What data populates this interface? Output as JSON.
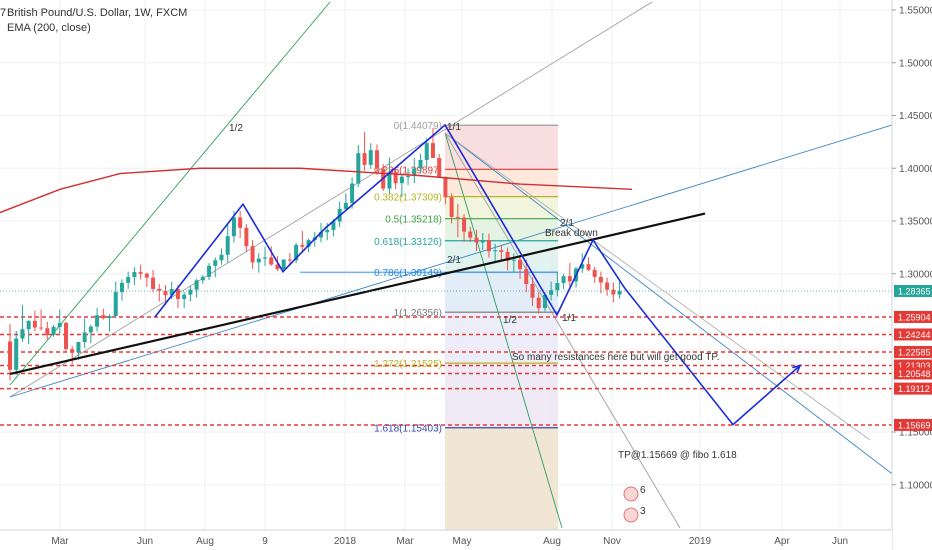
{
  "chart_data": {
    "type": "line",
    "title": "British Pound/U.S. Dollar, 1W, FXCM",
    "title_prefix": "7",
    "indicator": "EMA (200, close)",
    "x_labels": [
      "Mar",
      "Jun",
      "Aug",
      "9",
      "2018",
      "Mar",
      "May",
      "Aug",
      "Nov",
      "2019",
      "Apr",
      "Jun"
    ],
    "y_ticks": [
      "1.55000",
      "1.50000",
      "1.45000",
      "1.40000",
      "1.35000",
      "1.30000",
      "1.15000",
      "1.10000"
    ],
    "ylim": [
      1.08,
      1.56
    ],
    "current_price": "1.28365",
    "resistance_levels": [
      "1.25904",
      "1.24244",
      "1.22585",
      "1.21303",
      "1.20548",
      "1.19112",
      "1.15669"
    ],
    "fib_levels": [
      {
        "label": "0(1.44079)",
        "value": 1.44079,
        "color": "#9e9e9e"
      },
      {
        "label": "0.236(1.39897)",
        "value": 1.39897,
        "color": "#e53935"
      },
      {
        "label": "0.382(1.37309)",
        "value": 1.37309,
        "color": "#b5b51f"
      },
      {
        "label": "0.5(1.35218)",
        "value": 1.35218,
        "color": "#43a047"
      },
      {
        "label": "0.618(1.33126)",
        "value": 1.33126,
        "color": "#26a69a"
      },
      {
        "label": "0.786(1.30149)",
        "value": 1.30149,
        "color": "#1e88e5"
      },
      {
        "label": "1(1.26356)",
        "value": 1.26356,
        "color": "#757575"
      },
      {
        "label": "1.272(1.21525)",
        "value": 1.21525,
        "color": "#b5b51f"
      },
      {
        "label": "1.618(1.15403)",
        "value": 1.15403,
        "color": "#3949ab"
      }
    ],
    "annotations": {
      "breakdown": "Break down",
      "resistances": "So many resistances here but will get good TP.",
      "tp": "TP@1.15669 @ fibo 1.618",
      "fan_half_left": "1/2",
      "fan_half_mid": "1/2",
      "fan_one_top": "1/1",
      "fan_one_bottom": "1/1",
      "fan_two_top": "2/1",
      "fan_two_mid": "2/1",
      "event_count_top": "6",
      "event_count_bottom": "3"
    },
    "ohlc": [
      [
        1.2358,
        1.2526,
        1.1987,
        1.2089
      ],
      [
        1.2089,
        1.2458,
        1.2042,
        1.2386
      ],
      [
        1.2386,
        1.2706,
        1.2354,
        1.2474
      ],
      [
        1.2474,
        1.2558,
        1.2332,
        1.2554
      ],
      [
        1.2554,
        1.265,
        1.2455,
        1.249
      ],
      [
        1.249,
        1.2661,
        1.2461,
        1.2484
      ],
      [
        1.2484,
        1.2546,
        1.2378,
        1.2419
      ],
      [
        1.2419,
        1.2513,
        1.2403,
        1.2496
      ],
      [
        1.2496,
        1.2662,
        1.2432,
        1.2533
      ],
      [
        1.2533,
        1.2548,
        1.2266,
        1.2286
      ],
      [
        1.2286,
        1.2316,
        1.2143,
        1.2257
      ],
      [
        1.2257,
        1.2356,
        1.2185,
        1.2353
      ],
      [
        1.2353,
        1.2577,
        1.2295,
        1.2444
      ],
      [
        1.2444,
        1.2516,
        1.2342,
        1.2499
      ],
      [
        1.2499,
        1.2676,
        1.2452,
        1.2607
      ],
      [
        1.2607,
        1.2669,
        1.2565,
        1.2579
      ],
      [
        1.2579,
        1.2614,
        1.2452,
        1.2599
      ],
      [
        1.2599,
        1.2925,
        1.2585,
        1.2826
      ],
      [
        1.2826,
        1.2947,
        1.2745,
        1.2914
      ],
      [
        1.2914,
        1.302,
        1.2857,
        1.2969
      ],
      [
        1.2969,
        1.3061,
        1.2892,
        1.3016
      ],
      [
        1.3016,
        1.3087,
        1.2947,
        1.3
      ],
      [
        1.3,
        1.3012,
        1.2875,
        1.2964
      ],
      [
        1.2964,
        1.3037,
        1.2823,
        1.2856
      ],
      [
        1.2856,
        1.2902,
        1.2737,
        1.2838
      ],
      [
        1.2838,
        1.2892,
        1.2705,
        1.2797
      ],
      [
        1.2797,
        1.2924,
        1.2758,
        1.2856
      ],
      [
        1.2856,
        1.2889,
        1.2674,
        1.2761
      ],
      [
        1.2761,
        1.2827,
        1.2673,
        1.2802
      ],
      [
        1.2802,
        1.2886,
        1.2739,
        1.2849
      ],
      [
        1.2849,
        1.2951,
        1.2777,
        1.2938
      ],
      [
        1.2938,
        1.2989,
        1.2904,
        1.297
      ],
      [
        1.297,
        1.3101,
        1.2941,
        1.3075
      ],
      [
        1.3075,
        1.3155,
        1.2966,
        1.3128
      ],
      [
        1.3128,
        1.3241,
        1.3085,
        1.318
      ],
      [
        1.318,
        1.3469,
        1.3106,
        1.3356
      ],
      [
        1.3356,
        1.3593,
        1.3296,
        1.3534
      ],
      [
        1.3534,
        1.3597,
        1.3338,
        1.3435
      ],
      [
        1.3435,
        1.3471,
        1.3206,
        1.3262
      ],
      [
        1.3262,
        1.3322,
        1.3046,
        1.3108
      ],
      [
        1.3108,
        1.3195,
        1.3011,
        1.3144
      ],
      [
        1.3144,
        1.3256,
        1.3074,
        1.3155
      ],
      [
        1.3155,
        1.3262,
        1.3075,
        1.3087
      ],
      [
        1.3087,
        1.3167,
        1.3028,
        1.3044
      ],
      [
        1.3044,
        1.3136,
        1.3027,
        1.3135
      ],
      [
        1.3135,
        1.3197,
        1.3075,
        1.3127
      ],
      [
        1.3127,
        1.3292,
        1.3099,
        1.3273
      ],
      [
        1.3273,
        1.3405,
        1.3198,
        1.3256
      ],
      [
        1.3256,
        1.3333,
        1.3205,
        1.3319
      ],
      [
        1.3319,
        1.3397,
        1.3256,
        1.3345
      ],
      [
        1.3345,
        1.3484,
        1.3297,
        1.3393
      ],
      [
        1.3393,
        1.3481,
        1.3318,
        1.3416
      ],
      [
        1.3416,
        1.3518,
        1.3355,
        1.3495
      ],
      [
        1.3495,
        1.3684,
        1.3442,
        1.3615
      ],
      [
        1.3615,
        1.3762,
        1.3597,
        1.3672
      ],
      [
        1.3672,
        1.3914,
        1.3617,
        1.3855
      ],
      [
        1.3855,
        1.4219,
        1.3822,
        1.4143
      ],
      [
        1.4143,
        1.4344,
        1.3975,
        1.4032
      ],
      [
        1.4032,
        1.4237,
        1.3991,
        1.4171
      ],
      [
        1.4171,
        1.4226,
        1.3935,
        1.3995
      ],
      [
        1.3995,
        1.404,
        1.3785,
        1.3807
      ],
      [
        1.3807,
        1.4102,
        1.3758,
        1.3962
      ],
      [
        1.3962,
        1.4001,
        1.3803,
        1.3858
      ],
      [
        1.3858,
        1.3949,
        1.3727,
        1.392
      ],
      [
        1.392,
        1.3998,
        1.384,
        1.3926
      ],
      [
        1.3926,
        1.4096,
        1.3859,
        1.3998
      ],
      [
        1.3998,
        1.4138,
        1.395,
        1.4079
      ],
      [
        1.4079,
        1.4281,
        1.4012,
        1.4238
      ],
      [
        1.4238,
        1.4382,
        1.4129,
        1.4097
      ],
      [
        1.4097,
        1.4136,
        1.3951,
        1.3918
      ],
      [
        1.3918,
        1.3911,
        1.3657,
        1.3725
      ],
      [
        1.3725,
        1.3762,
        1.3476,
        1.3539
      ],
      [
        1.3539,
        1.3662,
        1.3346,
        1.3532
      ],
      [
        1.3532,
        1.3567,
        1.3302,
        1.34
      ],
      [
        1.34,
        1.3446,
        1.3301,
        1.3343
      ],
      [
        1.3343,
        1.3417,
        1.3214,
        1.3296
      ],
      [
        1.3296,
        1.3387,
        1.3224,
        1.332
      ],
      [
        1.332,
        1.338,
        1.3153,
        1.3214
      ],
      [
        1.3214,
        1.3284,
        1.3114,
        1.3223
      ],
      [
        1.3223,
        1.3276,
        1.3124,
        1.3207
      ],
      [
        1.3207,
        1.3249,
        1.3031,
        1.3124
      ],
      [
        1.3124,
        1.3191,
        1.3014,
        1.3133
      ],
      [
        1.3133,
        1.3171,
        1.2951,
        1.3044
      ],
      [
        1.3044,
        1.3132,
        1.2827,
        1.2903
      ],
      [
        1.2903,
        1.2966,
        1.2694,
        1.2773
      ],
      [
        1.2773,
        1.2824,
        1.2622,
        1.2674
      ],
      [
        1.2674,
        1.2825,
        1.2645,
        1.28
      ],
      [
        1.28,
        1.2925,
        1.2748,
        1.2845
      ],
      [
        1.2845,
        1.3017,
        1.2785,
        1.2912
      ],
      [
        1.2912,
        1.2999,
        1.2853,
        1.2977
      ],
      [
        1.2977,
        1.3101,
        1.2873,
        1.2928
      ],
      [
        1.2928,
        1.3066,
        1.2869,
        1.3049
      ],
      [
        1.3049,
        1.3195,
        1.3009,
        1.3091
      ],
      [
        1.3091,
        1.3153,
        1.3024,
        1.3037
      ],
      [
        1.3037,
        1.3064,
        1.2915,
        1.297
      ],
      [
        1.297,
        1.3021,
        1.2814,
        1.2917
      ],
      [
        1.2917,
        1.2963,
        1.2792,
        1.2849
      ],
      [
        1.2849,
        1.2917,
        1.2728,
        1.2803
      ],
      [
        1.2803,
        1.2927,
        1.2764,
        1.2837
      ]
    ],
    "ema": [
      [
        0,
        1.358
      ],
      [
        60,
        1.38
      ],
      [
        120,
        1.395
      ],
      [
        200,
        1.4
      ],
      [
        300,
        1.4
      ],
      [
        420,
        1.393
      ],
      [
        520,
        1.385
      ],
      [
        632,
        1.38
      ]
    ],
    "main_trend": [
      [
        10,
        1.205
      ],
      [
        705,
        1.357
      ]
    ],
    "breakdown_swing": [
      [
        155,
        1.259
      ],
      [
        243,
        1.366
      ],
      [
        283,
        1.302
      ],
      [
        325,
        1.343
      ],
      [
        445,
        1.441
      ],
      [
        557,
        1.261
      ],
      [
        593,
        1.332
      ],
      [
        625,
        1.286
      ],
      [
        733,
        1.157
      ],
      [
        800,
        1.213
      ]
    ]
  }
}
